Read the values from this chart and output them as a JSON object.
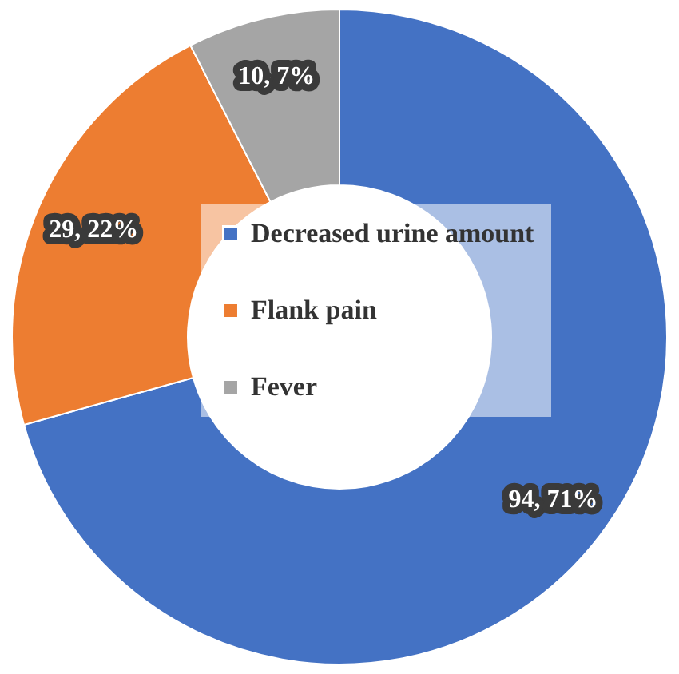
{
  "chart_data": {
    "type": "donut",
    "categories": [
      "Decreased urine amount",
      "Flank pain",
      "Fever"
    ],
    "values": [
      94,
      29,
      10
    ],
    "colors": [
      "#4472c4",
      "#ed7d31",
      "#a5a5a5"
    ],
    "value_labels": [
      "94, 71%",
      "29, 22%",
      "10, 7%"
    ],
    "legend": "center"
  }
}
